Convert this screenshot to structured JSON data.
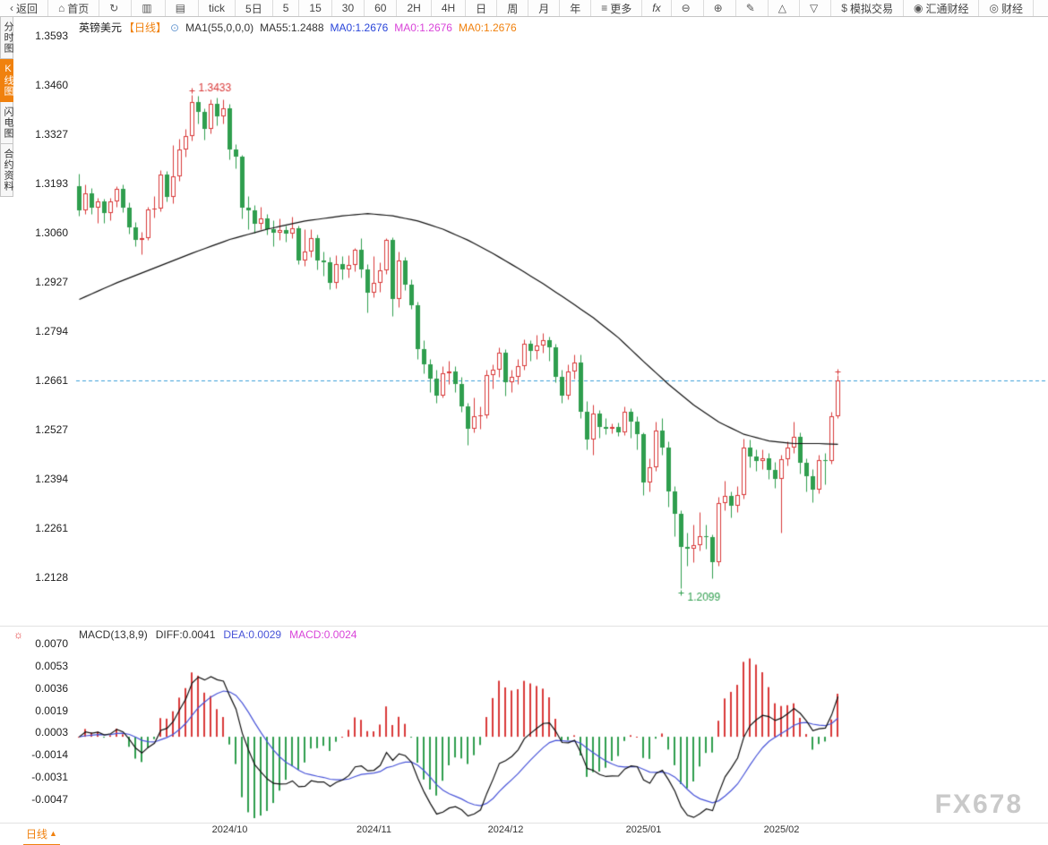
{
  "toolbar": {
    "items": [
      {
        "name": "back-button",
        "icon": {
          "name": "back-icon",
          "glyph": "‹"
        },
        "label": "返回"
      },
      {
        "name": "home-button",
        "icon": {
          "name": "home-icon",
          "glyph": "⌂"
        },
        "label": "首页"
      },
      {
        "name": "refresh-button",
        "icon": {
          "name": "refresh-icon",
          "glyph": "↻"
        },
        "label": ""
      },
      {
        "name": "kline-style-button",
        "icon": {
          "name": "kline-chart-icon",
          "glyph": "▥"
        },
        "label": ""
      },
      {
        "name": "volume-style-button",
        "icon": {
          "name": "volume-chart-icon",
          "glyph": "▤"
        },
        "label": ""
      },
      {
        "name": "period-tick-button",
        "label": "tick"
      },
      {
        "name": "period-5d-button",
        "label": "5日"
      },
      {
        "name": "period-5m-button",
        "label": "5"
      },
      {
        "name": "period-15m-button",
        "label": "15"
      },
      {
        "name": "period-30m-button",
        "label": "30"
      },
      {
        "name": "period-60m-button",
        "label": "60"
      },
      {
        "name": "period-2h-button",
        "label": "2H"
      },
      {
        "name": "period-4h-button",
        "label": "4H"
      },
      {
        "name": "period-day-button",
        "label": "日"
      },
      {
        "name": "period-week-button",
        "label": "周"
      },
      {
        "name": "period-month-button",
        "label": "月"
      },
      {
        "name": "period-year-button",
        "label": "年"
      },
      {
        "name": "more-button",
        "icon": {
          "name": "menu-icon",
          "glyph": "≡"
        },
        "label": "更多"
      },
      {
        "name": "fx-indicators-button",
        "label": "fx",
        "italic": true
      },
      {
        "name": "zoom-out-button",
        "icon": {
          "name": "zoom-out-icon",
          "glyph": "⊖"
        },
        "label": ""
      },
      {
        "name": "zoom-in-button",
        "icon": {
          "name": "zoom-in-icon",
          "glyph": "⊕"
        },
        "label": ""
      },
      {
        "name": "draw-tool-button",
        "icon": {
          "name": "pencil-icon",
          "glyph": "✎"
        },
        "label": ""
      },
      {
        "name": "scale-up-button",
        "icon": {
          "name": "triangle-up-icon",
          "glyph": "△"
        },
        "label": ""
      },
      {
        "name": "scale-down-button",
        "icon": {
          "name": "triangle-down-icon",
          "glyph": "▽"
        },
        "label": ""
      },
      {
        "name": "demo-trade-button",
        "icon": {
          "name": "dollar-icon",
          "glyph": "$"
        },
        "label": "模拟交易"
      },
      {
        "name": "fx678-news-button",
        "icon": {
          "name": "fx678-logo-icon",
          "glyph": "◉"
        },
        "label": "汇通财经"
      },
      {
        "name": "finance-button",
        "icon": {
          "name": "finance-logo-icon",
          "glyph": "◎"
        },
        "label": "财经"
      }
    ]
  },
  "side_tabs": {
    "items": [
      {
        "name": "tab-time-chart",
        "label": "分时图",
        "active": false
      },
      {
        "name": "tab-kline-chart",
        "label": "K线图",
        "active": true
      },
      {
        "name": "tab-lightning-chart",
        "label": "闪电图",
        "active": false
      },
      {
        "name": "tab-contract-info",
        "label": "合约资料",
        "active": false
      }
    ]
  },
  "price_panel": {
    "title": {
      "symbol": "英镑美元",
      "period": "【日线】",
      "ma_param": "MA1(55,0,0,0)",
      "ma55": "MA55:1.2488",
      "ma_fast": "MA0:1.2676",
      "ma_mid": "MA0:1.2676",
      "ma_slow": "MA0:1.2676"
    }
  },
  "macd_panel": {
    "title": {
      "name": "MACD(13,8,9)",
      "diff": "DIFF:0.0041",
      "dea": "DEA:0.0029",
      "macd": "MACD:0.0024"
    }
  },
  "bottom": {
    "period_label": "日线",
    "period_arrow": "▲"
  },
  "watermark": "FX678",
  "colors": {
    "accent_orange": "#f0810e",
    "up_red": "#d93a3a",
    "down_green": "#2f9e4e",
    "ma55_line": "#111111",
    "price_line_blue": "#3a9fd9",
    "dif_line": "#111111",
    "dea_line": "#4753d8",
    "watermark_gray": "#c9c9c9"
  },
  "chart_data": {
    "type": "candlestick",
    "symbol": "英镑美元",
    "timeframe": "日线",
    "price_ticks": [
      1.3593,
      1.346,
      1.3327,
      1.3193,
      1.306,
      1.2927,
      1.2794,
      1.2661,
      1.2527,
      1.2394,
      1.2261,
      1.2128
    ],
    "macd_ticks": [
      0.007,
      0.0053,
      0.0036,
      0.0019,
      0.0003,
      -0.0014,
      -0.0031,
      -0.0047
    ],
    "x_labels": [
      [
        24,
        "2024/10"
      ],
      [
        47,
        "2024/11"
      ],
      [
        68,
        "2024/12"
      ],
      [
        90,
        "2025/01"
      ],
      [
        112,
        "2025/02"
      ]
    ],
    "price_line": 1.2661,
    "high_annotation": {
      "index": 18,
      "value": 1.3433,
      "label": "1.3433"
    },
    "low_annotation": {
      "index": 96,
      "value": 1.2099,
      "label": "1.2099"
    },
    "ma55": {
      "period": 55,
      "points": [
        [
          0,
          1.288
        ],
        [
          6,
          1.2925
        ],
        [
          12,
          1.2965
        ],
        [
          18,
          1.3005
        ],
        [
          24,
          1.3042
        ],
        [
          30,
          1.307
        ],
        [
          36,
          1.3092
        ],
        [
          42,
          1.3106
        ],
        [
          46,
          1.3112
        ],
        [
          50,
          1.3106
        ],
        [
          54,
          1.3092
        ],
        [
          58,
          1.307
        ],
        [
          62,
          1.304
        ],
        [
          66,
          1.3004
        ],
        [
          70,
          1.2964
        ],
        [
          74,
          1.2922
        ],
        [
          78,
          1.2877
        ],
        [
          82,
          1.283
        ],
        [
          86,
          1.2776
        ],
        [
          90,
          1.2712
        ],
        [
          94,
          1.265
        ],
        [
          98,
          1.2594
        ],
        [
          102,
          1.2548
        ],
        [
          106,
          1.2515
        ],
        [
          110,
          1.2497
        ],
        [
          114,
          1.249
        ],
        [
          118,
          1.249
        ],
        [
          121,
          1.2488
        ]
      ]
    },
    "macd": {
      "params": [
        13,
        8,
        9
      ],
      "diff": 0.0041,
      "dea": 0.0029,
      "macd": 0.0024
    },
    "candles": [
      [
        1.3185,
        1.322,
        1.3106,
        1.3122
      ],
      [
        1.3122,
        1.319,
        1.3112,
        1.3168
      ],
      [
        1.3168,
        1.3182,
        1.311,
        1.3127
      ],
      [
        1.3127,
        1.3155,
        1.3087,
        1.3146
      ],
      [
        1.3146,
        1.3152,
        1.3088,
        1.3113
      ],
      [
        1.3113,
        1.3155,
        1.3095,
        1.3144
      ],
      [
        1.3144,
        1.3186,
        1.313,
        1.3178
      ],
      [
        1.3178,
        1.3192,
        1.3116,
        1.3129
      ],
      [
        1.3129,
        1.3142,
        1.3058,
        1.3075
      ],
      [
        1.3075,
        1.309,
        1.3025,
        1.304
      ],
      [
        1.304,
        1.3062,
        1.3002,
        1.3045
      ],
      [
        1.3045,
        1.313,
        1.304,
        1.3124
      ],
      [
        1.3124,
        1.316,
        1.3102,
        1.3125
      ],
      [
        1.3125,
        1.323,
        1.3118,
        1.3218
      ],
      [
        1.3218,
        1.3228,
        1.3145,
        1.3158
      ],
      [
        1.3158,
        1.3298,
        1.314,
        1.3213
      ],
      [
        1.3213,
        1.3315,
        1.32,
        1.3285
      ],
      [
        1.3285,
        1.334,
        1.3265,
        1.3322
      ],
      [
        1.3322,
        1.3433,
        1.331,
        1.3415
      ],
      [
        1.3415,
        1.343,
        1.3355,
        1.3388
      ],
      [
        1.3388,
        1.3398,
        1.3312,
        1.334
      ],
      [
        1.334,
        1.342,
        1.333,
        1.3408
      ],
      [
        1.3408,
        1.3425,
        1.335,
        1.3375
      ],
      [
        1.3375,
        1.342,
        1.3356,
        1.3398
      ],
      [
        1.3398,
        1.341,
        1.326,
        1.3285
      ],
      [
        1.3285,
        1.33,
        1.3235,
        1.3265
      ],
      [
        1.3265,
        1.327,
        1.31,
        1.3128
      ],
      [
        1.3128,
        1.316,
        1.307,
        1.3121
      ],
      [
        1.3121,
        1.3135,
        1.306,
        1.3085
      ],
      [
        1.3085,
        1.313,
        1.307,
        1.31
      ],
      [
        1.31,
        1.311,
        1.3055,
        1.307
      ],
      [
        1.307,
        1.3095,
        1.3025,
        1.306
      ],
      [
        1.306,
        1.31,
        1.304,
        1.3068
      ],
      [
        1.3068,
        1.308,
        1.3035,
        1.3058
      ],
      [
        1.3058,
        1.3105,
        1.3045,
        1.3072
      ],
      [
        1.3072,
        1.308,
        1.2975,
        1.2985
      ],
      [
        1.2985,
        1.307,
        1.297,
        1.301
      ],
      [
        1.301,
        1.307,
        1.2995,
        1.3045
      ],
      [
        1.3045,
        1.3055,
        1.296,
        1.2985
      ],
      [
        1.2985,
        1.301,
        1.2945,
        1.298
      ],
      [
        1.298,
        1.2995,
        1.2908,
        1.2925
      ],
      [
        1.2925,
        1.3,
        1.291,
        1.2975
      ],
      [
        1.2975,
        1.2998,
        1.2935,
        1.296
      ],
      [
        1.296,
        1.3,
        1.294,
        1.2972
      ],
      [
        1.2972,
        1.302,
        1.2955,
        1.3015
      ],
      [
        1.3015,
        1.3045,
        1.294,
        1.296
      ],
      [
        1.296,
        1.2975,
        1.2845,
        1.2899
      ],
      [
        1.2899,
        1.2998,
        1.2885,
        1.2925
      ],
      [
        1.2925,
        1.298,
        1.29,
        1.2958
      ],
      [
        1.2958,
        1.3045,
        1.295,
        1.304
      ],
      [
        1.304,
        1.3048,
        1.2835,
        1.288
      ],
      [
        1.288,
        1.301,
        1.286,
        1.2985
      ],
      [
        1.2985,
        1.2995,
        1.2905,
        1.292
      ],
      [
        1.292,
        1.2935,
        1.2855,
        1.2865
      ],
      [
        1.2865,
        1.2875,
        1.272,
        1.2745
      ],
      [
        1.2745,
        1.277,
        1.268,
        1.2705
      ],
      [
        1.2705,
        1.272,
        1.263,
        1.2665
      ],
      [
        1.2665,
        1.269,
        1.26,
        1.262
      ],
      [
        1.262,
        1.27,
        1.2615,
        1.268
      ],
      [
        1.268,
        1.2715,
        1.265,
        1.2685
      ],
      [
        1.2685,
        1.27,
        1.263,
        1.265
      ],
      [
        1.265,
        1.267,
        1.2575,
        1.259
      ],
      [
        1.259,
        1.26,
        1.2487,
        1.253
      ],
      [
        1.253,
        1.2615,
        1.252,
        1.2565
      ],
      [
        1.2565,
        1.259,
        1.253,
        1.2567
      ],
      [
        1.2567,
        1.269,
        1.256,
        1.2675
      ],
      [
        1.2675,
        1.2705,
        1.264,
        1.269
      ],
      [
        1.269,
        1.275,
        1.267,
        1.2735
      ],
      [
        1.2735,
        1.2745,
        1.262,
        1.2655
      ],
      [
        1.2655,
        1.269,
        1.263,
        1.267
      ],
      [
        1.267,
        1.272,
        1.265,
        1.27
      ],
      [
        1.27,
        1.2772,
        1.269,
        1.276
      ],
      [
        1.276,
        1.277,
        1.2715,
        1.274
      ],
      [
        1.274,
        1.2785,
        1.272,
        1.2755
      ],
      [
        1.2755,
        1.279,
        1.2735,
        1.277
      ],
      [
        1.277,
        1.278,
        1.2715,
        1.275
      ],
      [
        1.275,
        1.276,
        1.2655,
        1.267
      ],
      [
        1.267,
        1.269,
        1.26,
        1.262
      ],
      [
        1.262,
        1.2705,
        1.261,
        1.2685
      ],
      [
        1.2685,
        1.273,
        1.2665,
        1.271
      ],
      [
        1.271,
        1.273,
        1.256,
        1.2575
      ],
      [
        1.2575,
        1.2605,
        1.2475,
        1.25
      ],
      [
        1.25,
        1.2595,
        1.246,
        1.257
      ],
      [
        1.257,
        1.258,
        1.2505,
        1.2535
      ],
      [
        1.2535,
        1.256,
        1.2515,
        1.253
      ],
      [
        1.253,
        1.2545,
        1.2518,
        1.2535
      ],
      [
        1.2535,
        1.2548,
        1.251,
        1.252
      ],
      [
        1.252,
        1.259,
        1.2512,
        1.2575
      ],
      [
        1.2575,
        1.2585,
        1.2505,
        1.255
      ],
      [
        1.255,
        1.2565,
        1.2475,
        1.2515
      ],
      [
        1.2515,
        1.252,
        1.235,
        1.2385
      ],
      [
        1.2385,
        1.245,
        1.236,
        1.2425
      ],
      [
        1.2425,
        1.255,
        1.2415,
        1.2525
      ],
      [
        1.2525,
        1.256,
        1.246,
        1.248
      ],
      [
        1.248,
        1.2495,
        1.232,
        1.236
      ],
      [
        1.236,
        1.2375,
        1.224,
        1.23
      ],
      [
        1.23,
        1.231,
        1.2099,
        1.221
      ],
      [
        1.221,
        1.225,
        1.216,
        1.2205
      ],
      [
        1.2205,
        1.227,
        1.217,
        1.2215
      ],
      [
        1.2215,
        1.2305,
        1.22,
        1.224
      ],
      [
        1.224,
        1.227,
        1.2205,
        1.2238
      ],
      [
        1.2238,
        1.2245,
        1.2125,
        1.217
      ],
      [
        1.217,
        1.2345,
        1.216,
        1.2328
      ],
      [
        1.2328,
        1.239,
        1.231,
        1.2349
      ],
      [
        1.2349,
        1.236,
        1.229,
        1.2321
      ],
      [
        1.2321,
        1.2375,
        1.2305,
        1.235
      ],
      [
        1.235,
        1.2503,
        1.234,
        1.2478
      ],
      [
        1.2478,
        1.25,
        1.2425,
        1.2455
      ],
      [
        1.2455,
        1.2475,
        1.2415,
        1.2442
      ],
      [
        1.2442,
        1.2475,
        1.242,
        1.245
      ],
      [
        1.245,
        1.2465,
        1.2395,
        1.2418
      ],
      [
        1.2418,
        1.244,
        1.237,
        1.2395
      ],
      [
        1.2395,
        1.246,
        1.225,
        1.2448
      ],
      [
        1.2448,
        1.2495,
        1.243,
        1.2479
      ],
      [
        1.2479,
        1.255,
        1.2465,
        1.2507
      ],
      [
        1.2507,
        1.252,
        1.241,
        1.2437
      ],
      [
        1.2437,
        1.245,
        1.236,
        1.2401
      ],
      [
        1.2401,
        1.242,
        1.2332,
        1.2366
      ],
      [
        1.2366,
        1.246,
        1.2355,
        1.2445
      ],
      [
        1.2445,
        1.2465,
        1.238,
        1.2442
      ],
      [
        1.2442,
        1.2575,
        1.2435,
        1.2565
      ],
      [
        1.2565,
        1.2676,
        1.256,
        1.2661
      ]
    ]
  }
}
